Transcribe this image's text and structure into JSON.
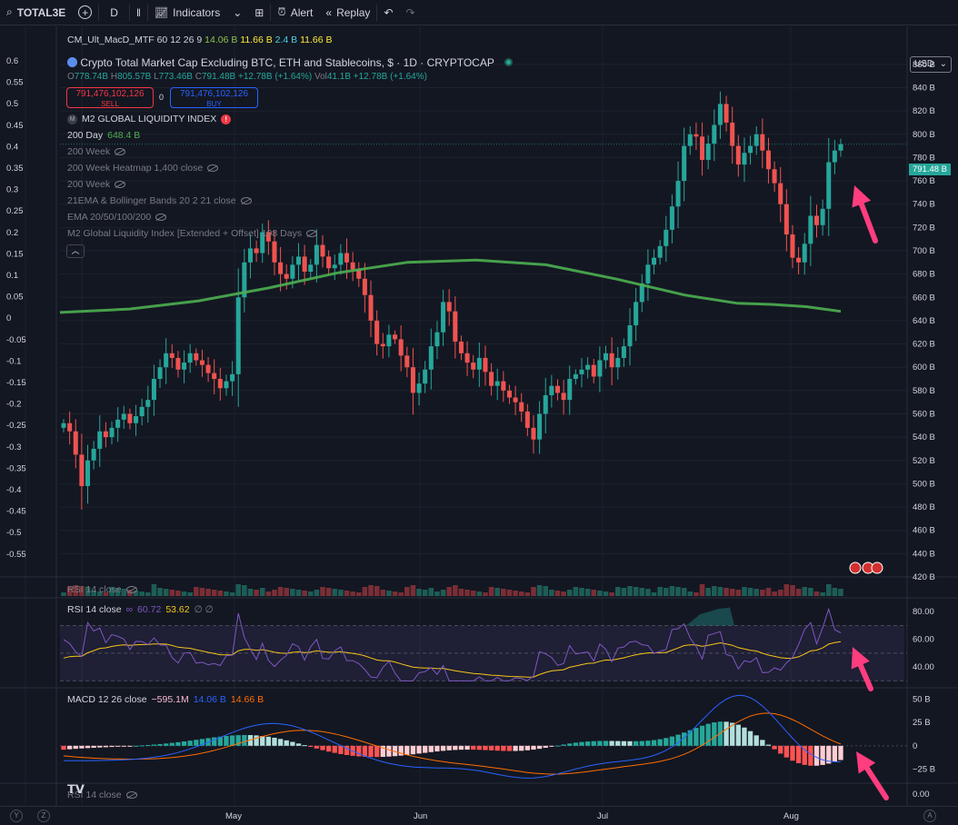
{
  "toolbar": {
    "symbol": "TOTAL3E",
    "interval": "D",
    "indicators_label": "Indicators",
    "alert_label": "Alert",
    "replay_label": "Replay",
    "currency": "USD"
  },
  "main_legend": {
    "title": "Crypto Total Market Cap Excluding BTC, ETH and Stablecoins, $ · 1D · CRYPTOCAP",
    "o_label": "O",
    "o_val": "778.74B",
    "h_label": "H",
    "h_val": "805.57B",
    "l_label": "L",
    "l_val": "773.46B",
    "c_label": "C",
    "c_val": "791.48B",
    "change": "+12.78B (+1.64%)",
    "vol_label": "Vol",
    "vol_val": "41.1B",
    "vol_change": "+12.78B (+1.64%)",
    "sell_price": "791,476,102,126",
    "sell_label": "SELL",
    "spread": "0",
    "buy_price": "791,476,102,126",
    "buy_label": "BUY"
  },
  "overlay_rows": [
    {
      "label": "M2 GLOBAL LIQUIDITY INDEX",
      "value": ""
    },
    {
      "label": "200 Day",
      "value": "648.4 B"
    },
    {
      "label": "200 Week",
      "value": ""
    },
    {
      "label": "200 Week Heatmap 1,400 close",
      "value": ""
    },
    {
      "label": "200 Week",
      "value": ""
    },
    {
      "label": "21EMA & Bollinger Bands 20 2 21 close",
      "value": ""
    },
    {
      "label": "EMA 20/50/100/200",
      "value": ""
    },
    {
      "label": "M2 Global Liquidity Index [Extended + Offset] 108 Days",
      "value": ""
    }
  ],
  "macd_mtf_legend": {
    "label": "CM_Ult_MacD_MTF 60 12 26 9",
    "v1": "14.06 B",
    "v2": "11.66 B",
    "v3": "2.4 B",
    "v4": "11.66 B"
  },
  "rsi_hidden_1": "RSI 14 close",
  "rsi_legend": {
    "label": "RSI 14 close",
    "v1": "60.72",
    "v2": "53.62",
    "v3": "∅ ∅"
  },
  "macd_legend": {
    "label": "MACD 12 26 close",
    "v1": "−595.1M",
    "v2": "14.06 B",
    "v3": "14.66 B"
  },
  "rsi_hidden_2": "RSI 14 close",
  "last_price_tag": "791.48 B",
  "colors": {
    "up": "#26a69a",
    "down": "#ef5350",
    "ma": "#4caf50",
    "rsi": "#7e57c2",
    "rsi_ma": "#f5c518",
    "macd": "#2962ff",
    "signal": "#ff6d00",
    "arrow": "#ff3d7f"
  },
  "chart_data": [
    {
      "type": "candlestick",
      "title": "Crypto Total Market Cap Excluding BTC, ETH and Stablecoins, $ · 1D · CRYPTOCAP",
      "x_ticks": [
        "May",
        "Jun",
        "Jul",
        "Aug"
      ],
      "y_right_ticks": [
        "860 B",
        "840 B",
        "820 B",
        "800 B",
        "780 B",
        "760 B",
        "740 B",
        "720 B",
        "700 B",
        "680 B",
        "660 B",
        "640 B",
        "620 B",
        "600 B",
        "580 B",
        "560 B",
        "540 B",
        "520 B",
        "500 B",
        "480 B",
        "460 B",
        "440 B",
        "420 B"
      ],
      "y_left_ticks": [
        "0.6",
        "0.55",
        "0.5",
        "0.45",
        "0.4",
        "0.35",
        "0.3",
        "0.25",
        "0.2",
        "0.15",
        "0.1",
        "0.05",
        "0",
        "-0.05",
        "-0.1",
        "-0.15",
        "-0.2",
        "-0.25",
        "-0.3",
        "-0.35",
        "-0.4",
        "-0.45",
        "-0.5",
        "-0.55"
      ],
      "ylim": [
        420,
        870
      ],
      "close_series": [
        552,
        545,
        525,
        498,
        520,
        530,
        545,
        540,
        548,
        555,
        560,
        552,
        558,
        566,
        572,
        590,
        600,
        612,
        608,
        598,
        604,
        612,
        606,
        602,
        595,
        590,
        582,
        588,
        594,
        660,
        690,
        702,
        698,
        716,
        708,
        690,
        680,
        676,
        688,
        695,
        682,
        688,
        705,
        695,
        685,
        688,
        698,
        690,
        684,
        676,
        662,
        640,
        620,
        618,
        628,
        624,
        610,
        600,
        578,
        586,
        598,
        618,
        630,
        656,
        648,
        622,
        612,
        604,
        598,
        608,
        596,
        584,
        588,
        580,
        574,
        570,
        562,
        548,
        538,
        560,
        576,
        584,
        578,
        572,
        590,
        594,
        598,
        602,
        592,
        606,
        612,
        600,
        608,
        618,
        636,
        656,
        672,
        688,
        694,
        704,
        718,
        738,
        760,
        790,
        800,
        798,
        778,
        792,
        808,
        826,
        810,
        790,
        774,
        784,
        790,
        800,
        786,
        770,
        758,
        740,
        714,
        694,
        690,
        706,
        730,
        722,
        736,
        776,
        786,
        791.48
      ],
      "ma200_series": [
        [
          0,
          647
        ],
        [
          40,
          650
        ],
        [
          80,
          657
        ],
        [
          120,
          668
        ],
        [
          160,
          681
        ],
        [
          200,
          690
        ],
        [
          240,
          692
        ],
        [
          280,
          688
        ],
        [
          320,
          676
        ],
        [
          360,
          662
        ],
        [
          390,
          655
        ],
        [
          410,
          654
        ],
        [
          430,
          652
        ],
        [
          450,
          648
        ]
      ],
      "ma200_value": "648.4 B",
      "last_close": 791.48
    },
    {
      "type": "line",
      "title": "RSI 14 close",
      "y_ticks": [
        "80.00",
        "60.00",
        "40.00"
      ],
      "ylim": [
        25,
        90
      ],
      "rsi_value": 60.72,
      "rsi_ma_value": 53.62
    },
    {
      "type": "bar",
      "title": "MACD 12 26 close",
      "y_ticks": [
        "50 B",
        "25 B",
        "0",
        "−25 B"
      ],
      "macd_value": "14.06 B",
      "signal_value": "14.66 B",
      "histogram_value": "−595.1M"
    }
  ],
  "footer_axis": {
    "rsi_value": "0.00"
  }
}
